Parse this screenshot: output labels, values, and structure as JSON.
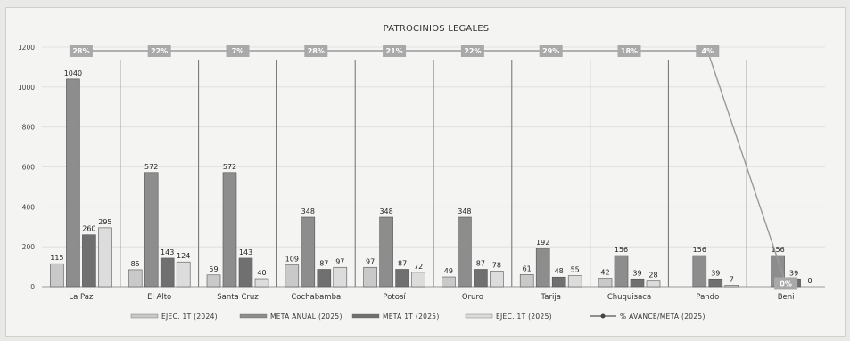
{
  "chart_data": {
    "type": "bar",
    "title": "PATROCINIOS LEGALES",
    "categories": [
      "La Paz",
      "El Alto",
      "Santa Cruz",
      "Cochabamba",
      "Potosí",
      "Oruro",
      "Tarija",
      "Chuquisaca",
      "Pando",
      "Beni"
    ],
    "ylim": [
      0,
      1200
    ],
    "yticks": [
      0,
      200,
      400,
      600,
      800,
      1000,
      1200
    ],
    "grid": true,
    "legend": "bottom",
    "series": [
      {
        "name": "EJEC. 1T (2024)",
        "color": "#c9c9c9",
        "values": [
          115,
          85,
          59,
          109,
          97,
          49,
          61,
          42,
          null,
          null
        ]
      },
      {
        "name": "META ANUAL (2025)",
        "color": "#8d8d8d",
        "values": [
          1040,
          572,
          572,
          348,
          348,
          348,
          192,
          156,
          156,
          156
        ]
      },
      {
        "name": "META 1T (2025)",
        "color": "#707070",
        "values": [
          260,
          143,
          143,
          87,
          87,
          87,
          48,
          39,
          39,
          39
        ]
      },
      {
        "name": "EJEC. 1T (2025)",
        "color": "#dcdcdc",
        "values": [
          295,
          124,
          40,
          97,
          72,
          78,
          55,
          28,
          7,
          0
        ]
      }
    ],
    "line_series": {
      "name": "% AVANCE/META (2025)",
      "color": "#9a9a9a",
      "labels": [
        "28%",
        "22%",
        "7%",
        "28%",
        "21%",
        "22%",
        "29%",
        "18%",
        "4%",
        "0%"
      ],
      "values": [
        28,
        22,
        7,
        28,
        21,
        22,
        29,
        18,
        4,
        0
      ]
    }
  }
}
